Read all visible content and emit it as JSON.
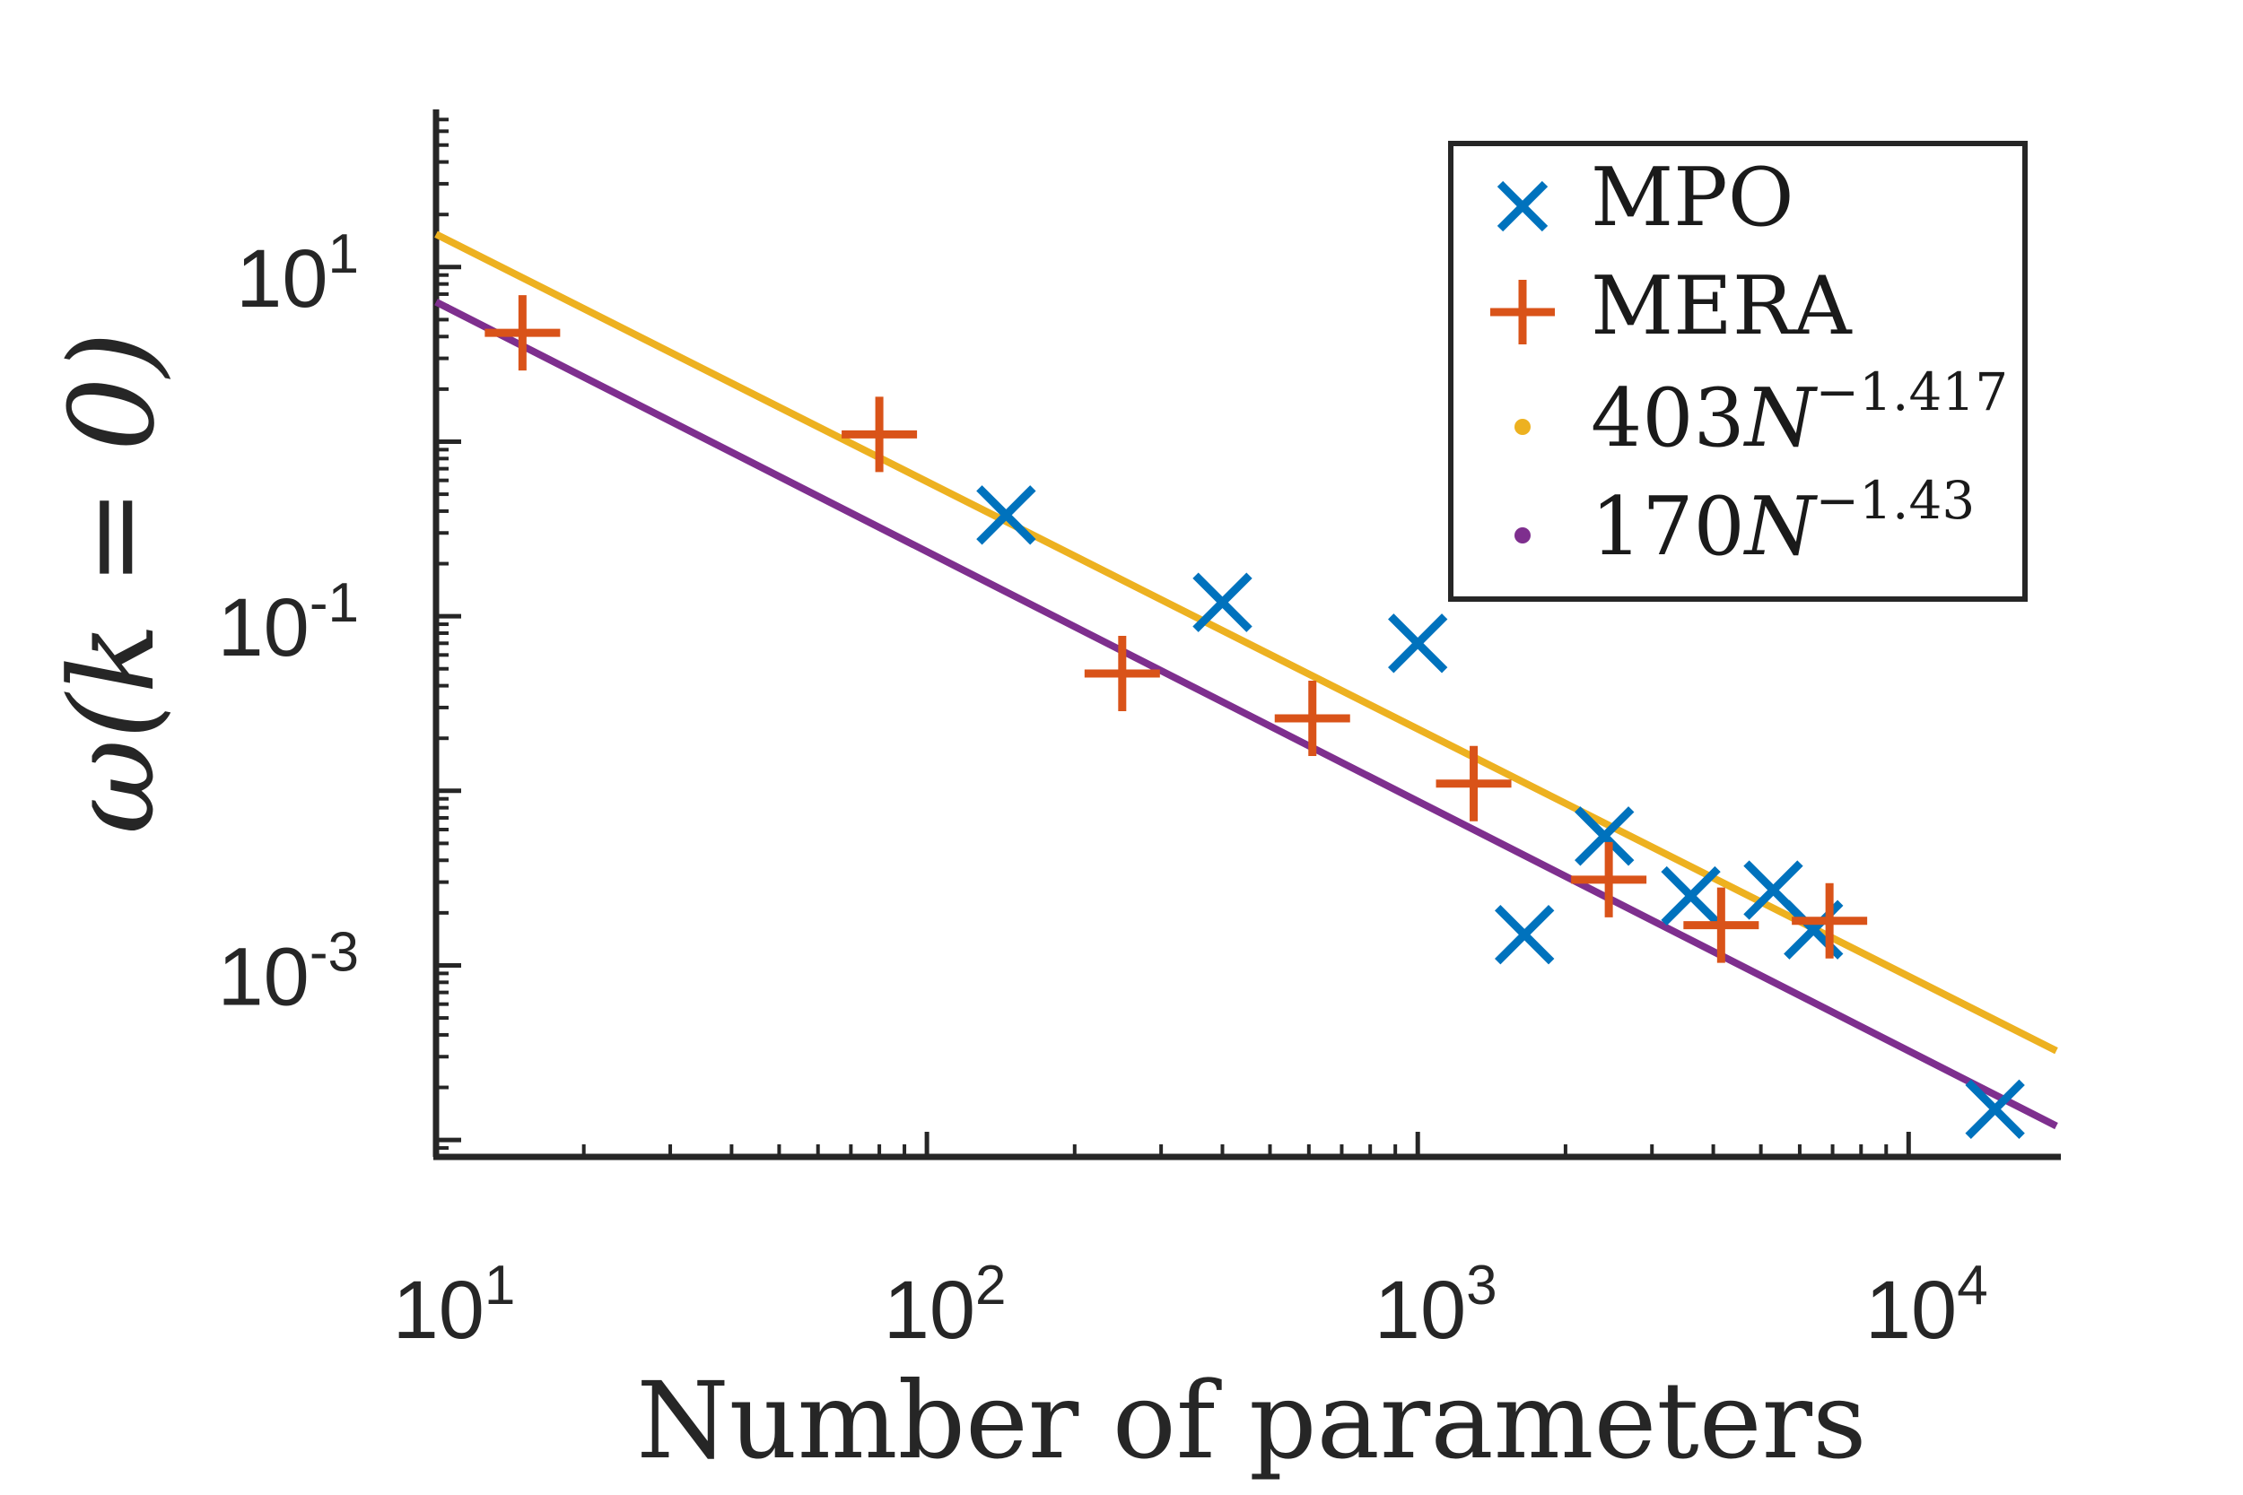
{
  "chart_data": {
    "type": "scatter",
    "xscale": "log",
    "yscale": "log",
    "xlim": [
      10,
      20000
    ],
    "ylim": [
      8e-05,
      80
    ],
    "xlabel": "Number of parameters",
    "ylabel": "ω(k = 0)",
    "x_ticks": [
      {
        "value": 10,
        "base": "10",
        "exp": "1"
      },
      {
        "value": 100,
        "base": "10",
        "exp": "2"
      },
      {
        "value": 1000,
        "base": "10",
        "exp": "3"
      },
      {
        "value": 10000,
        "base": "10",
        "exp": "4"
      }
    ],
    "y_ticks": [
      {
        "value": 10,
        "base": "10",
        "exp": "1"
      },
      {
        "value": 0.1,
        "base": "10",
        "exp": "-1"
      },
      {
        "value": 0.001,
        "base": "10",
        "exp": "-3"
      }
    ],
    "series": [
      {
        "name": "MPO",
        "marker": "x",
        "color": "#0072BD",
        "points": [
          {
            "x": 145,
            "y": 0.38
          },
          {
            "x": 400,
            "y": 0.12
          },
          {
            "x": 1000,
            "y": 0.07
          },
          {
            "x": 1650,
            "y": 0.0015
          },
          {
            "x": 2400,
            "y": 0.0055
          },
          {
            "x": 3600,
            "y": 0.0025
          },
          {
            "x": 5300,
            "y": 0.0027
          },
          {
            "x": 6400,
            "y": 0.0016
          },
          {
            "x": 15000,
            "y": 0.00015
          }
        ]
      },
      {
        "name": "MERA",
        "marker": "+",
        "color": "#D95319",
        "points": [
          {
            "x": 15,
            "y": 4.2
          },
          {
            "x": 80,
            "y": 1.1
          },
          {
            "x": 250,
            "y": 0.047
          },
          {
            "x": 610,
            "y": 0.026
          },
          {
            "x": 1300,
            "y": 0.011
          },
          {
            "x": 2450,
            "y": 0.0031
          },
          {
            "x": 4150,
            "y": 0.0017
          },
          {
            "x": 6900,
            "y": 0.0018
          }
        ]
      }
    ],
    "fits": [
      {
        "name_prefix": "403",
        "name_var": "N",
        "name_exp": "−1.417",
        "coef": 403,
        "exponent": -1.417,
        "color": "#EDB120"
      },
      {
        "name_prefix": "170",
        "name_var": "N",
        "name_exp": "−1.43",
        "coef": 170,
        "exponent": -1.43,
        "color": "#7E2F8E"
      }
    ],
    "legend": {
      "position": "top-right"
    }
  }
}
